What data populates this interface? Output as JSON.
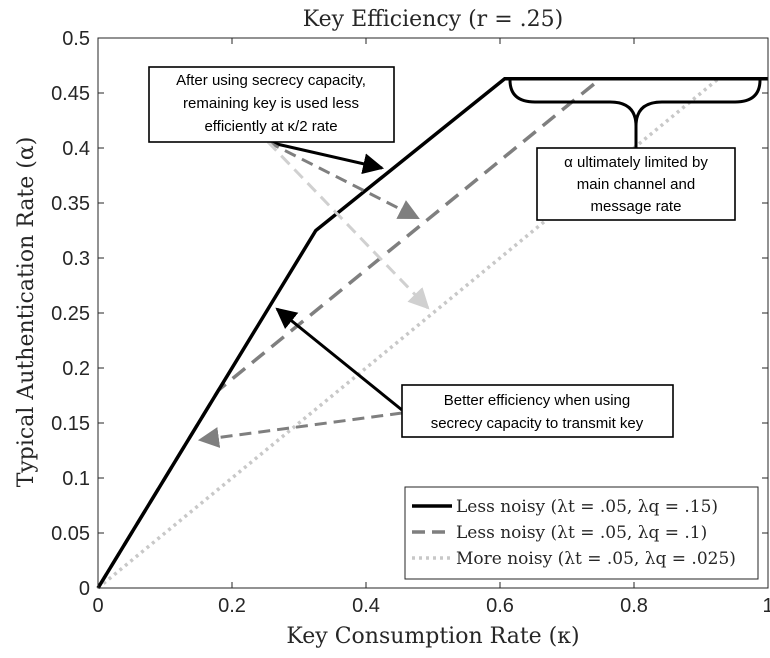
{
  "chart_data": {
    "type": "line",
    "title": "Key Efficiency (r = .25)",
    "xlabel": "Key Consumption Rate (κ)",
    "ylabel": "Typical Authentication Rate (α)",
    "xlim": [
      0,
      1
    ],
    "ylim": [
      0,
      0.5
    ],
    "xticks": [
      0,
      0.2,
      0.4,
      0.6,
      0.8,
      1
    ],
    "xtick_labels": [
      "0",
      "0.2",
      "0.4",
      "0.6",
      "0.8",
      "1"
    ],
    "yticks": [
      0,
      0.05,
      0.1,
      0.15,
      0.2,
      0.25,
      0.3,
      0.35,
      0.4,
      0.45,
      0.5
    ],
    "ytick_labels": [
      "0",
      "0.05",
      "0.1",
      "0.15",
      "0.2",
      "0.25",
      "0.3",
      "0.35",
      "0.4",
      "0.45",
      "0.5"
    ],
    "grid": false,
    "legend_position": "bottom-right",
    "series": [
      {
        "name": "Less noisy (λt = .05, λq = .15)",
        "color": "#000000",
        "style": "solid",
        "x": [
          0,
          0.325,
          0.607,
          1.0
        ],
        "y": [
          0,
          0.325,
          0.463,
          0.463
        ]
      },
      {
        "name": "Less noisy (λt = .05, λq = .1)",
        "color": "#7f7f7f",
        "style": "dashed",
        "x": [
          0,
          0.18,
          0.75,
          1.0
        ],
        "y": [
          0,
          0.18,
          0.463,
          0.463
        ]
      },
      {
        "name": "More noisy (λt = .05, λq = .025)",
        "color": "#c8c8c8",
        "style": "dotted",
        "x": [
          0,
          0.926,
          1.0
        ],
        "y": [
          0,
          0.463,
          0.463
        ]
      }
    ],
    "annotations": [
      {
        "text": "After using secrecy capacity, remaining key is used less efficiently at κ/2 rate",
        "lines": [
          "After using secrecy capacity,",
          "remaining key is used less",
          "efficiently at κ/2 rate"
        ]
      },
      {
        "text": "α ultimately limited by main channel and message rate",
        "lines": [
          "α ultimately limited by",
          "main channel and",
          "message rate"
        ]
      },
      {
        "text": "Better efficiency when using secrecy capacity to transmit key",
        "lines": [
          "Better efficiency when using",
          "secrecy capacity to transmit key"
        ]
      }
    ]
  }
}
